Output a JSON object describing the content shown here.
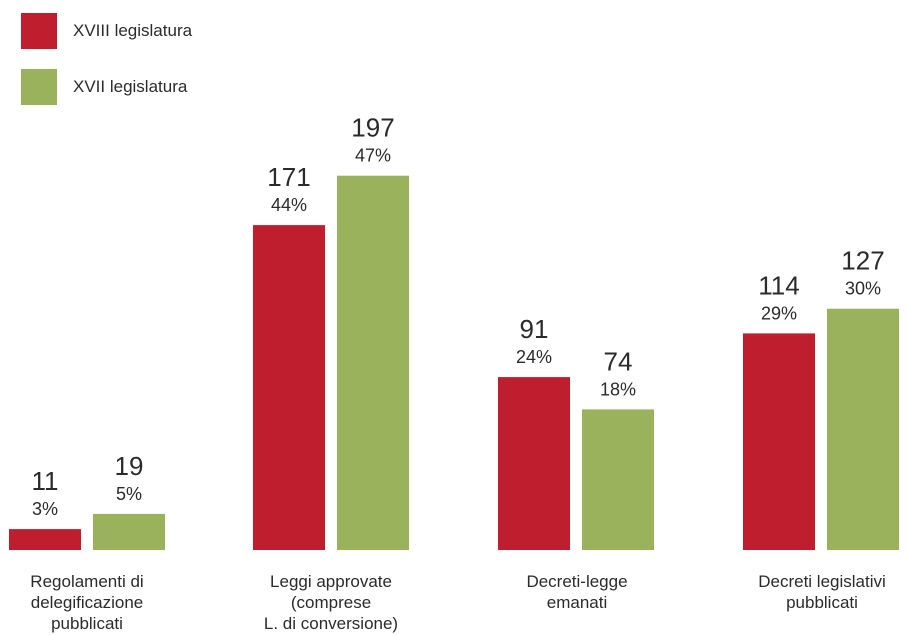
{
  "legend": [
    {
      "label": "XVIII legislatura",
      "color": "#be1e2d"
    },
    {
      "label": "XVII legislatura",
      "color": "#9bb25d"
    }
  ],
  "chart_data": {
    "type": "bar",
    "categories": [
      "Regolamenti di\ndelegificazione\npubblicati",
      "Leggi approvate\n(comprese\nL. di conversione)",
      "Decreti-legge\nemanati",
      "Decreti legislativi\npubblicati"
    ],
    "series": [
      {
        "name": "XVIII legislatura",
        "color": "#be1e2d",
        "values": [
          11,
          171,
          91,
          114
        ],
        "percent_labels": [
          "3%",
          "44%",
          "24%",
          "29%"
        ]
      },
      {
        "name": "XVII legislatura",
        "color": "#9bb25d",
        "values": [
          19,
          197,
          74,
          127
        ],
        "percent_labels": [
          "5%",
          "47%",
          "18%",
          "30%"
        ]
      }
    ],
    "ylim": [
      0,
      215
    ],
    "grid": false,
    "legend_position": "top-left"
  }
}
